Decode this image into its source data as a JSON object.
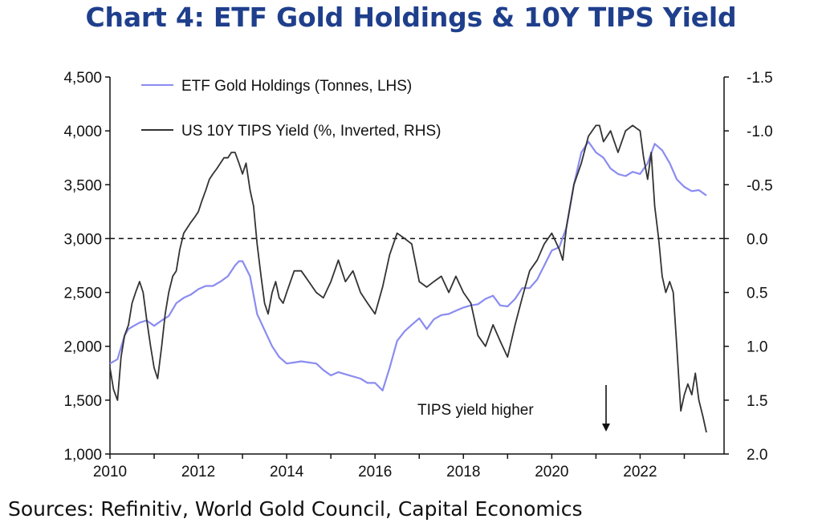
{
  "chart_data": {
    "type": "line",
    "title": "Chart 4: ETF Gold Holdings & 10Y TIPS Yield",
    "source": "Sources: Refinitiv, World Gold Council, Capital Economics",
    "x_range": [
      2010,
      2023.9
    ],
    "x_ticks": [
      "2010",
      "2012",
      "2014",
      "2016",
      "2018",
      "2020",
      "2022"
    ],
    "left_axis": {
      "ylim": [
        1000,
        4500
      ],
      "ticks": [
        "1,000",
        "1,500",
        "2,000",
        "2,500",
        "3,000",
        "3,500",
        "4,000",
        "4,500"
      ]
    },
    "right_axis": {
      "inverted": true,
      "ylim": [
        -1.5,
        2.0
      ],
      "ticks": [
        "-1.5",
        "-1.0",
        "-0.5",
        "0.0",
        "0.5",
        "1.0",
        "1.5",
        "2.0"
      ]
    },
    "reference_line": {
      "axis": "right",
      "value": 0.0,
      "style": "dashed"
    },
    "annotation": {
      "text": "TIPS yield higher",
      "arrow": "down"
    },
    "series": [
      {
        "name": "ETF Gold Holdings (Tonnes, LHS)",
        "axis": "left",
        "color": "#8a8cf0",
        "x": [
          2010.0,
          2010.17,
          2010.33,
          2010.42,
          2010.5,
          2010.67,
          2010.83,
          2011.0,
          2011.17,
          2011.33,
          2011.5,
          2011.67,
          2011.83,
          2012.0,
          2012.17,
          2012.33,
          2012.5,
          2012.67,
          2012.83,
          2012.92,
          2013.0,
          2013.17,
          2013.33,
          2013.5,
          2013.67,
          2013.83,
          2014.0,
          2014.17,
          2014.33,
          2014.5,
          2014.67,
          2014.83,
          2015.0,
          2015.17,
          2015.33,
          2015.5,
          2015.67,
          2015.83,
          2016.0,
          2016.17,
          2016.33,
          2016.5,
          2016.67,
          2016.83,
          2017.0,
          2017.17,
          2017.33,
          2017.5,
          2017.67,
          2017.83,
          2018.0,
          2018.17,
          2018.33,
          2018.5,
          2018.67,
          2018.83,
          2019.0,
          2019.17,
          2019.33,
          2019.5,
          2019.67,
          2019.83,
          2020.0,
          2020.17,
          2020.33,
          2020.5,
          2020.67,
          2020.83,
          2021.0,
          2021.17,
          2021.33,
          2021.5,
          2021.67,
          2021.83,
          2022.0,
          2022.17,
          2022.33,
          2022.5,
          2022.67,
          2022.83,
          2023.0,
          2023.17,
          2023.33,
          2023.5
        ],
        "values": [
          1840,
          1880,
          2100,
          2160,
          2180,
          2220,
          2240,
          2190,
          2240,
          2280,
          2400,
          2450,
          2480,
          2530,
          2560,
          2560,
          2600,
          2650,
          2750,
          2790,
          2790,
          2650,
          2300,
          2150,
          2000,
          1900,
          1840,
          1850,
          1860,
          1850,
          1840,
          1780,
          1730,
          1760,
          1740,
          1720,
          1700,
          1660,
          1660,
          1590,
          1800,
          2050,
          2140,
          2200,
          2260,
          2160,
          2250,
          2290,
          2300,
          2330,
          2360,
          2380,
          2390,
          2440,
          2470,
          2380,
          2370,
          2440,
          2540,
          2540,
          2620,
          2750,
          2890,
          2920,
          3100,
          3500,
          3800,
          3900,
          3800,
          3750,
          3650,
          3600,
          3580,
          3620,
          3600,
          3700,
          3880,
          3820,
          3700,
          3550,
          3480,
          3440,
          3450,
          3400
        ]
      },
      {
        "name": "US 10Y TIPS Yield (%, Inverted, RHS)",
        "axis": "right",
        "color": "#333333",
        "x": [
          2010.0,
          2010.08,
          2010.17,
          2010.25,
          2010.33,
          2010.42,
          2010.5,
          2010.58,
          2010.67,
          2010.75,
          2010.83,
          2010.92,
          2011.0,
          2011.08,
          2011.17,
          2011.25,
          2011.33,
          2011.42,
          2011.5,
          2011.58,
          2011.67,
          2011.75,
          2011.83,
          2011.92,
          2012.0,
          2012.08,
          2012.17,
          2012.25,
          2012.33,
          2012.42,
          2012.5,
          2012.58,
          2012.67,
          2012.75,
          2012.83,
          2012.92,
          2013.0,
          2013.08,
          2013.17,
          2013.25,
          2013.33,
          2013.42,
          2013.5,
          2013.58,
          2013.67,
          2013.75,
          2013.83,
          2013.92,
          2014.0,
          2014.17,
          2014.33,
          2014.5,
          2014.67,
          2014.83,
          2015.0,
          2015.17,
          2015.33,
          2015.5,
          2015.67,
          2015.83,
          2016.0,
          2016.17,
          2016.33,
          2016.5,
          2016.67,
          2016.83,
          2017.0,
          2017.17,
          2017.33,
          2017.5,
          2017.67,
          2017.83,
          2018.0,
          2018.17,
          2018.33,
          2018.5,
          2018.67,
          2018.83,
          2019.0,
          2019.17,
          2019.33,
          2019.5,
          2019.67,
          2019.83,
          2020.0,
          2020.17,
          2020.25,
          2020.33,
          2020.5,
          2020.67,
          2020.83,
          2021.0,
          2021.08,
          2021.17,
          2021.33,
          2021.5,
          2021.67,
          2021.83,
          2022.0,
          2022.08,
          2022.17,
          2022.25,
          2022.33,
          2022.42,
          2022.5,
          2022.58,
          2022.67,
          2022.75,
          2022.83,
          2022.92,
          2023.0,
          2023.08,
          2023.17,
          2023.25,
          2023.33,
          2023.42,
          2023.5
        ],
        "values": [
          1.2,
          1.4,
          1.5,
          1.1,
          0.9,
          0.8,
          0.6,
          0.5,
          0.4,
          0.5,
          0.75,
          1.0,
          1.2,
          1.3,
          1.0,
          0.7,
          0.5,
          0.35,
          0.3,
          0.1,
          -0.05,
          -0.1,
          -0.15,
          -0.2,
          -0.25,
          -0.35,
          -0.45,
          -0.55,
          -0.6,
          -0.65,
          -0.7,
          -0.75,
          -0.75,
          -0.8,
          -0.8,
          -0.7,
          -0.6,
          -0.7,
          -0.45,
          -0.3,
          0.05,
          0.35,
          0.6,
          0.7,
          0.5,
          0.4,
          0.55,
          0.6,
          0.5,
          0.3,
          0.3,
          0.4,
          0.5,
          0.55,
          0.4,
          0.2,
          0.4,
          0.3,
          0.5,
          0.6,
          0.7,
          0.45,
          0.15,
          -0.05,
          0.0,
          0.05,
          0.4,
          0.45,
          0.4,
          0.35,
          0.5,
          0.35,
          0.5,
          0.6,
          0.9,
          1.0,
          0.8,
          0.95,
          1.1,
          0.8,
          0.55,
          0.3,
          0.2,
          0.05,
          -0.05,
          0.1,
          0.2,
          -0.1,
          -0.5,
          -0.7,
          -0.95,
          -1.05,
          -1.05,
          -0.9,
          -1.0,
          -0.8,
          -1.0,
          -1.05,
          -1.0,
          -0.75,
          -0.55,
          -0.8,
          -0.3,
          0.0,
          0.35,
          0.5,
          0.4,
          0.5,
          1.0,
          1.6,
          1.45,
          1.35,
          1.45,
          1.25,
          1.5,
          1.65,
          1.8
        ]
      }
    ]
  }
}
